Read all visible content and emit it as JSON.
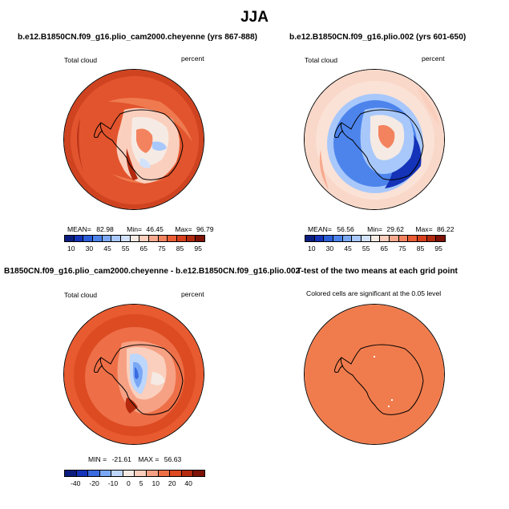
{
  "figure": {
    "title": "JJA",
    "panels": [
      {
        "title": "b.e12.B1850CN.f09_g16.plio_cam2000.cheyenne (yrs 867-888)",
        "left_label": "Total cloud",
        "right_label": "percent",
        "stats": {
          "mean_label": "MEAN=",
          "mean": "82.98",
          "min_label": "Min=",
          "min": "46.45",
          "max_label": "Max=",
          "max": "96.79"
        },
        "colorbar_ticks": [
          "10",
          "30",
          "45",
          "55",
          "65",
          "75",
          "85",
          "95"
        ]
      },
      {
        "title": "b.e12.B1850CN.f09_g16.plio.002 (yrs 601-650)",
        "left_label": "Total cloud",
        "right_label": "percent",
        "stats": {
          "mean_label": "MEAN=",
          "mean": "56.56",
          "min_label": "Min=",
          "min": "29.62",
          "max_label": "Max=",
          "max": "86.22"
        },
        "colorbar_ticks": [
          "10",
          "30",
          "45",
          "55",
          "65",
          "75",
          "85",
          "95"
        ]
      },
      {
        "title": "B1850CN.f09_g16.plio_cam2000.cheyenne - b.e12.B1850CN.f09_g16.plio.002",
        "left_label": "Total cloud",
        "right_label": "percent",
        "stats": {
          "min_label": "MIN =",
          "min": "-21.61",
          "max_label": "MAX =",
          "max": "56.63"
        },
        "colorbar_ticks": [
          "-40",
          "-20",
          "-10",
          "0",
          "5",
          "10",
          "20",
          "40"
        ]
      },
      {
        "title": "T-test of the two means at each grid point",
        "subtitle": "Colored cells are significant at the 0.05 level"
      }
    ]
  },
  "colors": {
    "abs_scale": [
      "#0b1e7f",
      "#1433b8",
      "#2b5fd9",
      "#4d84ec",
      "#7aa8f5",
      "#a8c8fb",
      "#d2e2fb",
      "#f5ebe4",
      "#fbcfbd",
      "#f8a98e",
      "#f3835f",
      "#ea5d35",
      "#d7401c",
      "#b22a0f",
      "#7e1205"
    ],
    "diff_scale": [
      "#0b1e7f",
      "#1433b8",
      "#3a6be0",
      "#7aa8f5",
      "#bdd6fb",
      "#f5ebe4",
      "#fbcfbd",
      "#f6a184",
      "#ee6f47",
      "#dd4b22",
      "#b52a0e",
      "#7e1205"
    ],
    "ttest_fill": "#f07c4d",
    "coast": "#000000"
  }
}
